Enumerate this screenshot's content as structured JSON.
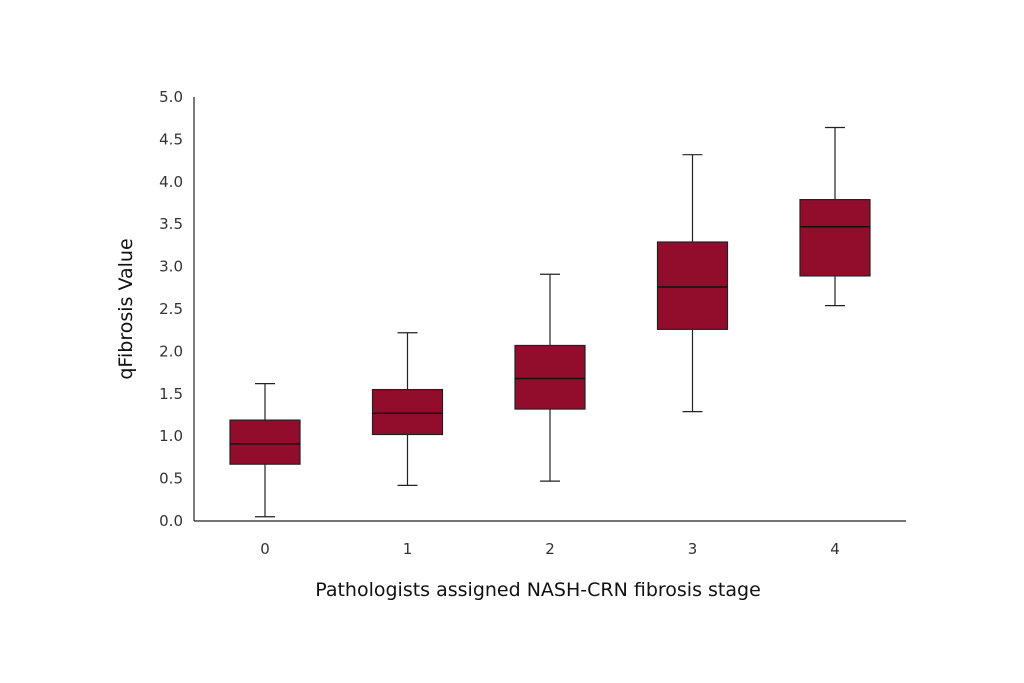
{
  "chart_data": {
    "type": "boxplot",
    "title": "",
    "xlabel": "Pathologists assigned NASH-CRN fibrosis stage",
    "ylabel": "qFibrosis Value",
    "ylim": [
      0,
      5
    ],
    "yticks": [
      "0.0",
      "0.5",
      "1.0",
      "1.5",
      "2.0",
      "2.5",
      "3.0",
      "3.5",
      "4.0",
      "4.5",
      "5.0"
    ],
    "categories": [
      "0",
      "1",
      "2",
      "3",
      "4"
    ],
    "boxes": [
      {
        "category": "0",
        "min": 0.05,
        "q1": 0.67,
        "median": 0.91,
        "q3": 1.19,
        "max": 1.62
      },
      {
        "category": "1",
        "min": 0.42,
        "q1": 1.02,
        "median": 1.27,
        "q3": 1.55,
        "max": 2.22
      },
      {
        "category": "2",
        "min": 0.47,
        "q1": 1.32,
        "median": 1.68,
        "q3": 2.07,
        "max": 2.91
      },
      {
        "category": "3",
        "min": 1.29,
        "q1": 2.26,
        "median": 2.76,
        "q3": 3.29,
        "max": 4.32
      },
      {
        "category": "4",
        "min": 2.54,
        "q1": 2.89,
        "median": 3.47,
        "q3": 3.79,
        "max": 4.64
      }
    ],
    "box_color": "#920c2c",
    "grid": false,
    "legend": "none"
  }
}
